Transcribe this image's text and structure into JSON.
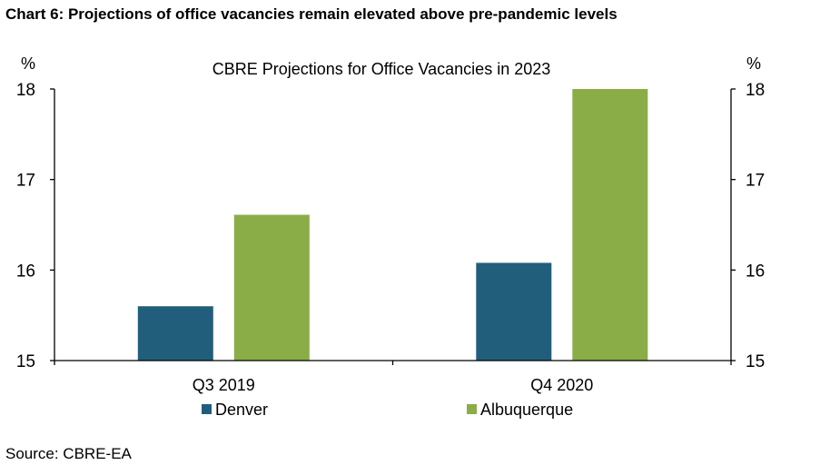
{
  "heading": "Chart 6: Projections of office vacancies remain elevated above pre-pandemic levels",
  "source": "Source: CBRE-EA",
  "chart_data": {
    "type": "bar",
    "title": "CBRE Projections for Office Vacancies in 2023",
    "y_unit_left": "%",
    "y_unit_right": "%",
    "categories": [
      "Q3 2019",
      "Q4 2020"
    ],
    "series": [
      {
        "name": "Denver",
        "values": [
          15.6,
          16.08
        ],
        "color": "#215e7c"
      },
      {
        "name": "Albuquerque",
        "values": [
          16.61,
          18.0
        ],
        "color": "#8aad47"
      }
    ],
    "ylim": [
      15,
      18
    ],
    "yticks": [
      15,
      16,
      17,
      18
    ],
    "dual_axis": true,
    "grid": false,
    "legend_position": "bottom"
  }
}
